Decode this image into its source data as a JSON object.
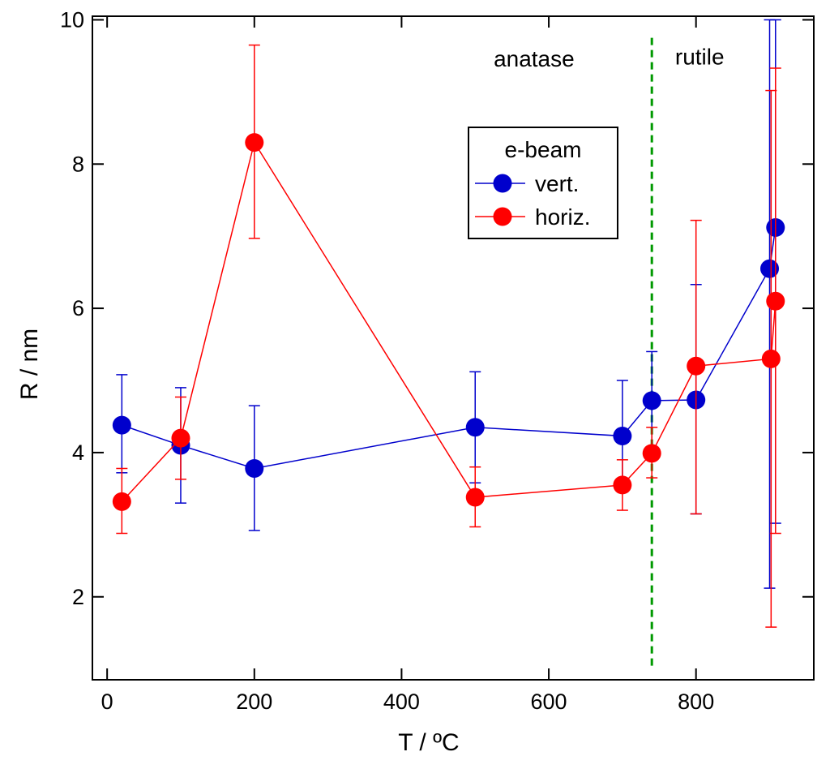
{
  "chart_data": {
    "type": "scatter",
    "xlabel": "T / ºC",
    "ylabel": "R / nm",
    "xlim": [
      -20,
      960
    ],
    "ylim": [
      0.85,
      10.05
    ],
    "xticks": [
      0,
      200,
      400,
      600,
      800
    ],
    "yticks": [
      2,
      4,
      6,
      8,
      10
    ],
    "legend": {
      "title": "e-beam",
      "position": "top-center"
    },
    "series": [
      {
        "name": "vert.",
        "color": "#0000cc",
        "points": [
          {
            "x": 20,
            "y": 4.38,
            "err_lo": 3.72,
            "err_hi": 5.08
          },
          {
            "x": 100,
            "y": 4.1,
            "err_lo": 3.3,
            "err_hi": 4.9
          },
          {
            "x": 200,
            "y": 3.78,
            "err_lo": 2.92,
            "err_hi": 4.65
          },
          {
            "x": 500,
            "y": 4.35,
            "err_lo": 3.58,
            "err_hi": 5.12
          },
          {
            "x": 700,
            "y": 4.23,
            "err_lo": 3.48,
            "err_hi": 5.0
          },
          {
            "x": 740,
            "y": 4.72,
            "err_lo": 4.05,
            "err_hi": 5.4
          },
          {
            "x": 800,
            "y": 4.73,
            "err_lo": 3.15,
            "err_hi": 6.33
          },
          {
            "x": 900,
            "y": 6.55,
            "err_lo": 2.12,
            "err_hi": 10.0
          },
          {
            "x": 908,
            "y": 7.12,
            "err_lo": 3.02,
            "err_hi": 10.0
          }
        ]
      },
      {
        "name": "horiz.",
        "color": "#ff0000",
        "points": [
          {
            "x": 20,
            "y": 3.32,
            "err_lo": 2.88,
            "err_hi": 3.78
          },
          {
            "x": 100,
            "y": 4.2,
            "err_lo": 3.63,
            "err_hi": 4.77
          },
          {
            "x": 200,
            "y": 8.3,
            "err_lo": 6.97,
            "err_hi": 9.65
          },
          {
            "x": 500,
            "y": 3.38,
            "err_lo": 2.97,
            "err_hi": 3.8
          },
          {
            "x": 700,
            "y": 3.55,
            "err_lo": 3.2,
            "err_hi": 3.9
          },
          {
            "x": 740,
            "y": 3.99,
            "err_lo": 3.65,
            "err_hi": 4.35
          },
          {
            "x": 800,
            "y": 5.2,
            "err_lo": 3.15,
            "err_hi": 7.22
          },
          {
            "x": 902,
            "y": 5.3,
            "err_lo": 1.58,
            "err_hi": 9.02
          },
          {
            "x": 908,
            "y": 6.1,
            "err_lo": 2.88,
            "err_hi": 9.33
          }
        ]
      }
    ],
    "phase_boundary": {
      "x": 740,
      "color": "#009900",
      "style": "dashed"
    },
    "annotations": [
      {
        "text": "anatase",
        "side": "left-of-boundary"
      },
      {
        "text": "rutile",
        "side": "right-of-boundary"
      }
    ]
  }
}
